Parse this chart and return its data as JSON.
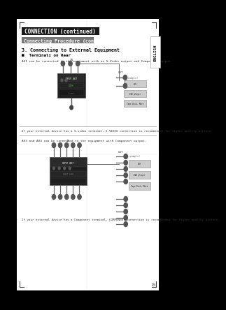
{
  "page_bg": "#ffffff",
  "outer_bg": "#000000",
  "header1_text": "CONNECTION (continued)",
  "header1_bg": "#1a1a1a",
  "header1_fg": "#ffffff",
  "header1_font_size": 5.5,
  "header2_text": "Connecting Procedure (continued)",
  "header2_bg": "#777777",
  "header2_fg": "#ffffff",
  "header2_font_size": 4.8,
  "section_title": "3. Connecting to External Equipment",
  "section_title_font_size": 4.8,
  "bullet_text": "■  Terminals on Rear",
  "bullet_font_size": 4.2,
  "av1_text": "AV1 can be connected to the equipment with an S-Video output and Composite output.",
  "av1_font_size": 3.2,
  "svideo_note": "If your external device has a S-video terminal, S-VIDEO connection is recommended for higher quality picture.",
  "svideo_note_font_size": 3.0,
  "av34_text": "AV3 and AV4 can be connected to the equipment with Component output.",
  "av34_font_size": 3.2,
  "component_note": "If your external device has a Component terminal, COMPONENT connection is recommended for higher quality picture.",
  "component_note_font_size": 3.0,
  "english_text": "ENGLISH",
  "english_font_size": 4.2,
  "page_number": "15",
  "page_number_font_size": 4.5,
  "corner_mark_color": "#444444",
  "line_color": "#999999",
  "divider_line_color": "#cccccc"
}
